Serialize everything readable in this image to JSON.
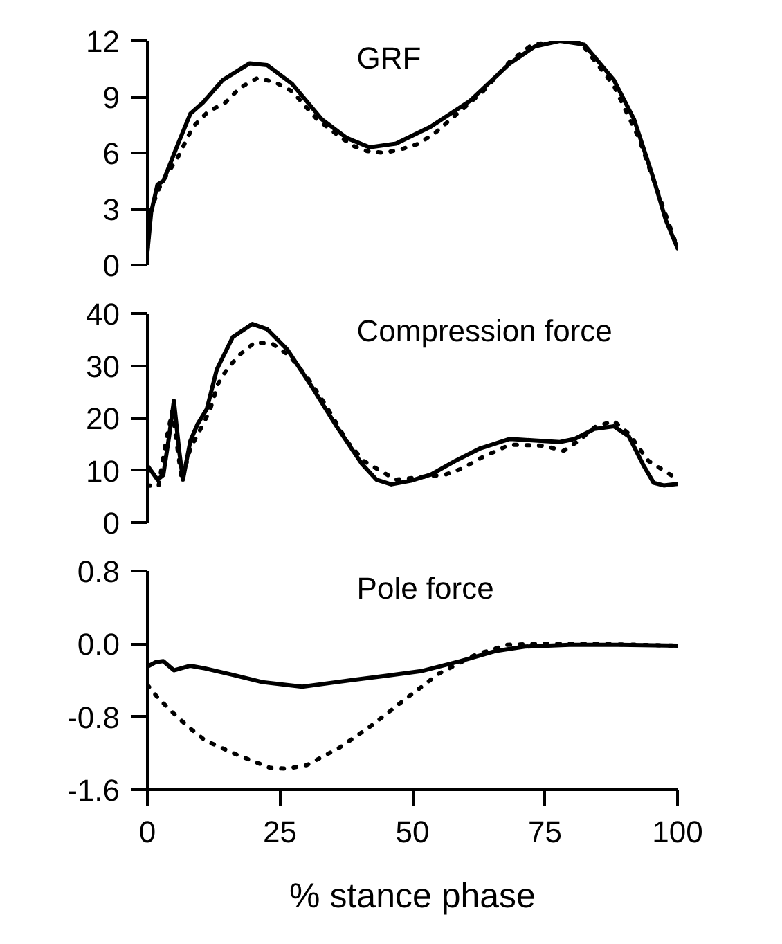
{
  "chart_data": [
    {
      "type": "line",
      "title": "GRF",
      "xlim": [
        0,
        100
      ],
      "ylim": [
        0,
        12
      ],
      "yticks": [
        0,
        3,
        6,
        9,
        12
      ],
      "tick_labels": "y",
      "grid": false,
      "series": [
        {
          "color": "#000000",
          "line_style": "solid",
          "x": [
            0,
            0.7,
            1.9,
            3,
            5.8,
            8.1,
            10.5,
            14.2,
            19.3,
            22.6,
            27.3,
            32.9,
            37.6,
            41.9,
            46.9,
            53.4,
            60.9,
            68.4,
            73.1,
            77.8,
            82.4,
            88,
            91.8,
            95.5,
            97.8,
            100
          ],
          "values": [
            0.7,
            2.8,
            4.3,
            4.5,
            6.5,
            8.1,
            8.7,
            9.9,
            10.8,
            10.7,
            9.7,
            7.8,
            6.8,
            6.3,
            6.5,
            7.4,
            8.8,
            10.8,
            11.7,
            12.0,
            11.8,
            9.9,
            7.8,
            4.6,
            2.4,
            0.9
          ]
        },
        {
          "color": "#000000",
          "line_style": "dotted",
          "x": [
            0,
            0.7,
            2.5,
            5.8,
            8.6,
            11.4,
            14.7,
            17.5,
            20.7,
            24,
            27.3,
            32,
            35.7,
            38.6,
            41.4,
            44.6,
            47.9,
            51.2,
            54.4,
            57.2,
            60.5,
            63.3,
            68.4,
            72.6,
            77.8,
            81.5,
            88,
            92.7,
            96.4,
            100
          ],
          "values": [
            0.8,
            3.0,
            4.3,
            5.8,
            7.4,
            8.2,
            8.7,
            9.5,
            10.0,
            9.8,
            9.3,
            7.8,
            7.0,
            6.4,
            6.1,
            6.0,
            6.2,
            6.5,
            7.1,
            7.8,
            8.6,
            9.3,
            10.9,
            11.8,
            12.0,
            12.0,
            9.6,
            6.8,
            3.8,
            0.9
          ]
        }
      ]
    },
    {
      "type": "line",
      "title": "Compression force",
      "xlim": [
        0,
        100
      ],
      "ylim": [
        0,
        40
      ],
      "yticks": [
        0,
        10,
        20,
        30,
        40
      ],
      "tick_labels": "y",
      "grid": false,
      "series": [
        {
          "color": "#000000",
          "line_style": "solid",
          "x": [
            0,
            1.9,
            3,
            4.1,
            5,
            6,
            6.7,
            8.1,
            9.5,
            11.2,
            13.1,
            16.1,
            19.8,
            22.6,
            26.4,
            31,
            35.7,
            40.4,
            43.2,
            46,
            49.7,
            53.5,
            58.1,
            62.8,
            68.4,
            73.1,
            77.8,
            80.6,
            84.3,
            88,
            90.8,
            93.6,
            95.5,
            97.4,
            100
          ],
          "values": [
            10.9,
            8.2,
            9.1,
            16.5,
            23.3,
            13.7,
            8.2,
            15.6,
            18.9,
            21.7,
            29.3,
            35.5,
            38,
            37,
            33.1,
            26,
            18.4,
            11.3,
            8.2,
            7.3,
            8.0,
            9.2,
            11.8,
            14.2,
            16.0,
            15.7,
            15.4,
            16.0,
            17.9,
            18.4,
            16.5,
            10.9,
            7.6,
            7.1,
            7.4
          ]
        },
        {
          "color": "#000000",
          "line_style": "dotted",
          "x": [
            0,
            2.1,
            3.5,
            4.7,
            5.6,
            6.5,
            8.1,
            10.3,
            11.8,
            13.3,
            15.1,
            17.5,
            20.3,
            23.6,
            26.8,
            30.1,
            33.8,
            37.6,
            40.8,
            43.6,
            46.9,
            52.5,
            56.3,
            59.5,
            62.8,
            68.4,
            74.8,
            78.5,
            81.3,
            84.6,
            88,
            90.8,
            94.5,
            98.9,
            100
          ],
          "values": [
            7.1,
            6.9,
            15.6,
            21.3,
            14.7,
            8.0,
            14.2,
            18.4,
            21.5,
            26.5,
            29.5,
            32.2,
            34.5,
            34.2,
            31.9,
            27.9,
            22.2,
            15.6,
            11.8,
            10.1,
            8.2,
            8.8,
            9.2,
            10.4,
            12.3,
            14.9,
            14.7,
            13.7,
            15.6,
            18.4,
            19.4,
            17.0,
            11.8,
            9.0,
            8.5
          ]
        }
      ]
    },
    {
      "type": "line",
      "title": "Pole force",
      "xlabel": "% stance phase",
      "xlim": [
        0,
        100
      ],
      "xticks": [
        0,
        25,
        50,
        75,
        100
      ],
      "ylim": [
        -1.6,
        0.8
      ],
      "yticks": [
        {
          "value": -1.6,
          "label": "-1.6"
        },
        {
          "value": -0.8,
          "label": "-0.8"
        },
        {
          "value": 0,
          "label": "0.0"
        },
        {
          "value": 0.8,
          "label": "0.8"
        }
      ],
      "grid": false,
      "series": [
        {
          "color": "#000000",
          "line_style": "solid",
          "x": [
            0,
            1.6,
            3,
            5,
            8.1,
            10.9,
            16.1,
            21.7,
            29.2,
            35.7,
            45,
            51.6,
            59,
            65.6,
            71.2,
            79.6,
            89,
            100
          ],
          "values": [
            -0.25,
            -0.2,
            -0.19,
            -0.29,
            -0.24,
            -0.27,
            -0.34,
            -0.42,
            -0.47,
            -0.42,
            -0.35,
            -0.3,
            -0.19,
            -0.08,
            -0.03,
            -0.01,
            -0.01,
            -0.02
          ]
        },
        {
          "color": "#000000",
          "line_style": "dotted",
          "x": [
            0,
            2.1,
            4.9,
            7.7,
            10.9,
            17,
            23.1,
            26.4,
            30.1,
            36.2,
            42.2,
            48.8,
            54.9,
            61.9,
            67.9,
            74,
            84.3,
            100
          ],
          "values": [
            -0.45,
            -0.6,
            -0.76,
            -0.91,
            -1.06,
            -1.22,
            -1.36,
            -1.37,
            -1.33,
            -1.14,
            -0.9,
            -0.6,
            -0.33,
            -0.12,
            -0.01,
            0.0,
            0.0,
            -0.02
          ]
        }
      ]
    }
  ]
}
